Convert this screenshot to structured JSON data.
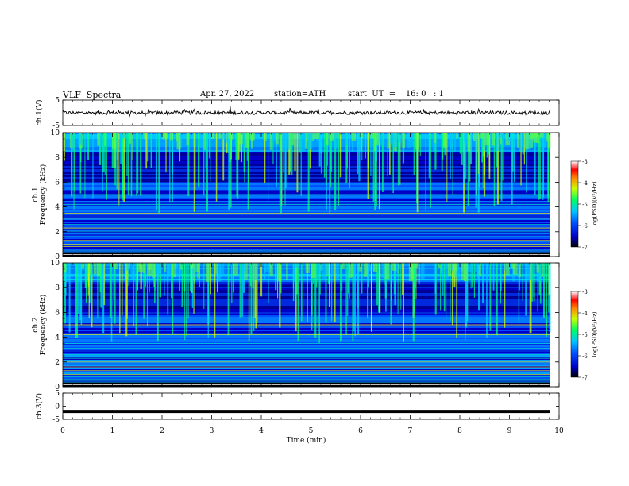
{
  "header": {
    "title": "VLF  Spectra",
    "date": "Apr. 27, 2022",
    "station": "station=ATH",
    "start": "start  UT  =    16: 0   : 1"
  },
  "chart_data": [
    {
      "type": "line",
      "panel": "ch1-waveform",
      "ylabel": "ch.1(V)",
      "ylim": [
        -5,
        5
      ],
      "yticks": [
        "5",
        "-5"
      ],
      "xlim": [
        0,
        10
      ],
      "series": [
        {
          "description_values_note": "",
          "x_start": 0.0,
          "x_end": 9.82,
          "y_baseline": 0.0,
          "y_noise_amplitude": 0.7
        }
      ]
    },
    {
      "type": "heatmap",
      "panel": "ch1-spectrogram",
      "ylabel": "ch.1\nFrequency  (kHz)",
      "ylabel_line1": "ch.1",
      "ylabel_line2": "Frequency  (kHz)",
      "ylim": [
        0,
        10
      ],
      "yticks": [
        "0",
        "2",
        "4",
        "6",
        "8",
        "10"
      ],
      "xlim": [
        0,
        10
      ],
      "x_data_end": 9.82,
      "colorbar": {
        "label": "log(PSD)(V²/Hz)",
        "range": [
          -7,
          -3
        ],
        "ticks": [
          "-3",
          "-4",
          "-5",
          "-6",
          "-7"
        ]
      }
    },
    {
      "type": "heatmap",
      "panel": "ch2-spectrogram",
      "ylabel": "ch.2\nFrequency  (kHz)",
      "ylabel_line1": "ch.2",
      "ylabel_line2": "Frequency  (kHz)",
      "ylim": [
        0,
        10
      ],
      "yticks": [
        "0",
        "2",
        "4",
        "6",
        "8",
        "10"
      ],
      "xlim": [
        0,
        10
      ],
      "x_data_end": 9.82,
      "colorbar": {
        "label": "log(PSD)(V²/Hz)",
        "range": [
          -7,
          -3
        ],
        "ticks": [
          "-3",
          "-4",
          "-5",
          "-6",
          "-7"
        ]
      }
    },
    {
      "type": "line",
      "panel": "ch3-waveform",
      "ylabel": "ch.3(V)",
      "ylim": [
        -5,
        5
      ],
      "yticks": [
        "5",
        "0",
        "-5"
      ],
      "xlim": [
        0,
        10
      ],
      "xlabel": "Time  (min)",
      "xticks": [
        "0",
        "1",
        "2",
        "3",
        "4",
        "5",
        "6",
        "7",
        "8",
        "9",
        "10"
      ],
      "series": [
        {
          "x_start": 0.0,
          "x_end": 9.82,
          "y_baseline": -2.0,
          "y_noise_amplitude": 0.0
        }
      ]
    }
  ]
}
